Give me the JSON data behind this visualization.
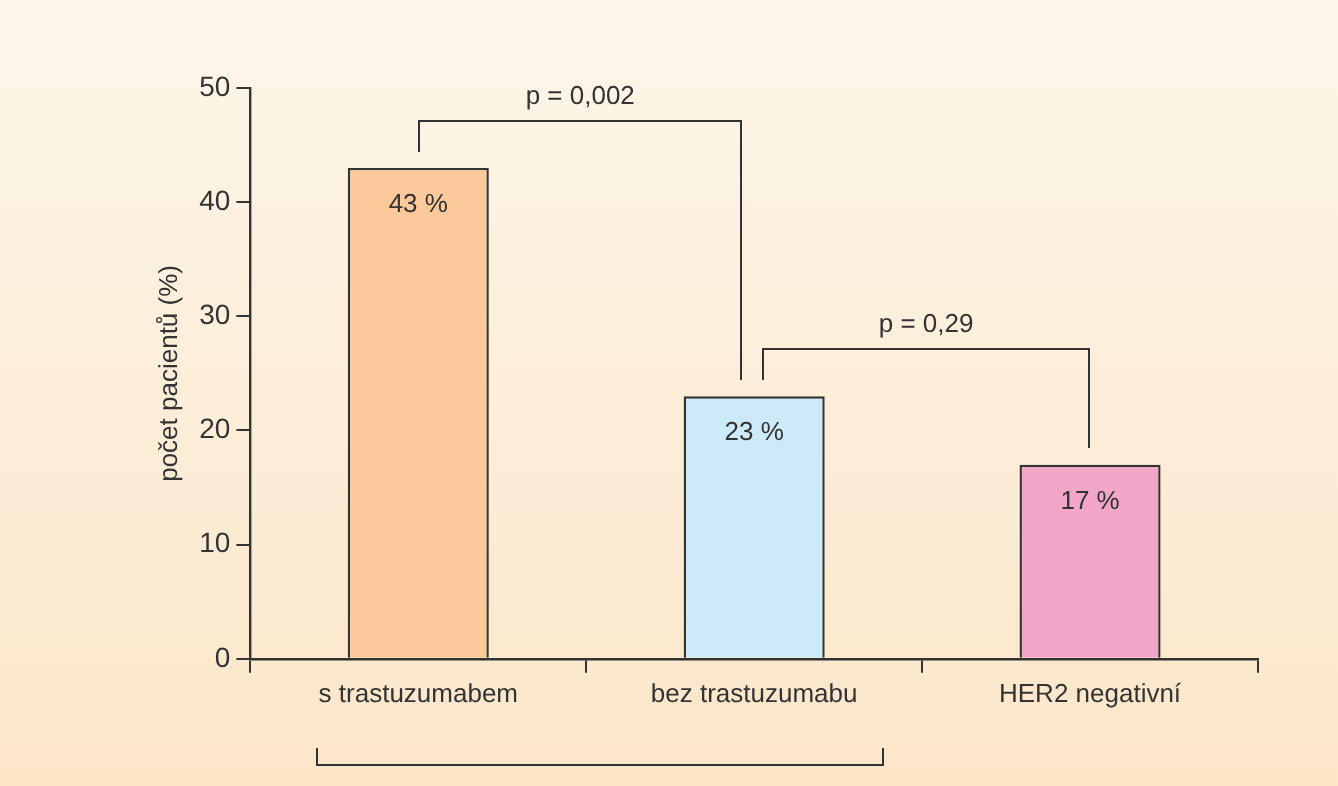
{
  "chart_data": {
    "type": "bar",
    "ylabel": "počet pacientů (%)",
    "categories": [
      "s trastuzumabem",
      "bez trastuzumabu",
      "HER2 negativní"
    ],
    "values": [
      43,
      23,
      17
    ],
    "value_labels": [
      "43 %",
      "23 %",
      "17 %"
    ],
    "colors": [
      "#fbc99a",
      "#cdeaf8",
      "#f3a6c8"
    ],
    "ylim": [
      0,
      50
    ],
    "yticks": [
      0,
      10,
      20,
      30,
      40,
      50
    ],
    "grid": false,
    "legend": false,
    "annotations": [
      "p = 0,002",
      "p = 0,29"
    ]
  }
}
